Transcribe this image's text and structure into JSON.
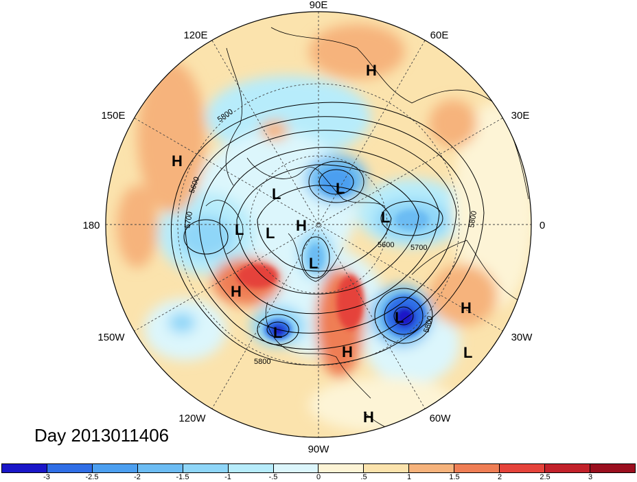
{
  "map": {
    "longitude_labels": {
      "lon_90E": "90E",
      "lon_120E": "120E",
      "lon_60E": "60E",
      "lon_150E": "150E",
      "lon_30E": "30E",
      "lon_180": "180",
      "lon_0": "0",
      "lon_150W": "150W",
      "lon_30W": "30W",
      "lon_120W": "120W",
      "lon_60W": "60W",
      "lon_90W": "90W"
    },
    "pressure_systems": [
      {
        "type": "H",
        "label": "H"
      },
      {
        "type": "H",
        "label": "H"
      },
      {
        "type": "L",
        "label": "L"
      },
      {
        "type": "L",
        "label": "L"
      },
      {
        "type": "L",
        "label": "L"
      },
      {
        "type": "L",
        "label": "L"
      },
      {
        "type": "H",
        "label": "H"
      },
      {
        "type": "L",
        "label": "L"
      },
      {
        "type": "L",
        "label": "L"
      },
      {
        "type": "H",
        "label": "H"
      },
      {
        "type": "L",
        "label": "L"
      },
      {
        "type": "H",
        "label": "H"
      },
      {
        "type": "L",
        "label": "L"
      },
      {
        "type": "H",
        "label": "H"
      },
      {
        "type": "L",
        "label": "L"
      },
      {
        "type": "H",
        "label": "H"
      }
    ],
    "contour_labels": {
      "c5800_a": "5800",
      "c5600_a": "5600",
      "c5700_a": "5700",
      "c5800_b": "5800",
      "c5600_b": "5600",
      "c5700_b": "5700",
      "c5800_c": "5800",
      "c5800_d": "5800"
    }
  },
  "title": "Day 2013011406",
  "colorbar": {
    "tick_labels": [
      "-3",
      "-2.5",
      "-2",
      "-1.5",
      "-1",
      "-.5",
      "0",
      ".5",
      "1",
      "1.5",
      "2",
      "2.5",
      "3"
    ],
    "colors": [
      "#1a16c8",
      "#2f6ee6",
      "#4c9ff0",
      "#6cbcf3",
      "#8fd6f8",
      "#b7ecfb",
      "#dcf6fc",
      "#fdf4d6",
      "#fbe3ad",
      "#f6b37c",
      "#ef7e55",
      "#e5433b",
      "#c2212a",
      "#9a0f1e"
    ]
  }
}
